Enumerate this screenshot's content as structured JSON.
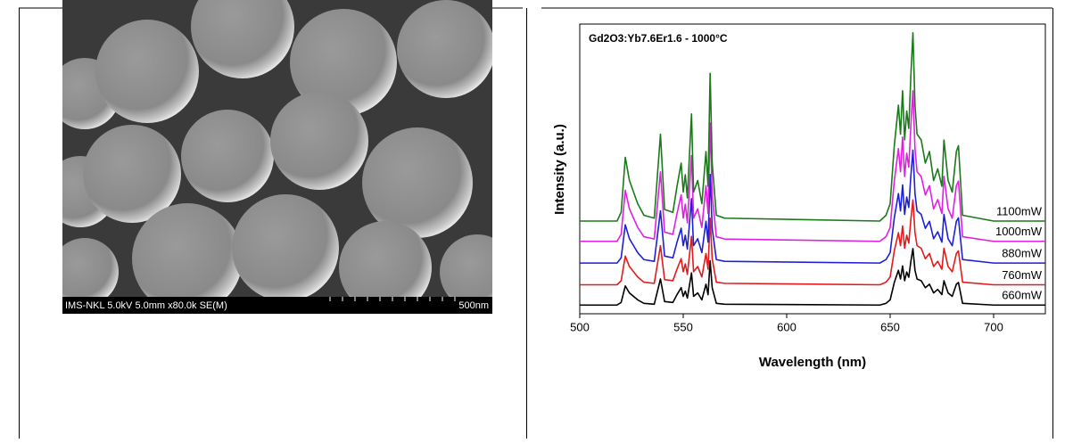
{
  "sem_image": {
    "info": "IMS-NKL 5.0kV 5.0mm x80.0k SE(M)",
    "scale": "500nm"
  },
  "chart_data": {
    "type": "line",
    "title": "Gd2O3:Yb7.6Er1.6 - 1000°C",
    "xlabel": "Wavelength (nm)",
    "ylabel": "Intensity (a.u.)",
    "xlim": [
      500,
      725
    ],
    "xticks": [
      500,
      550,
      600,
      650,
      700
    ],
    "ylim": [
      0,
      100
    ],
    "x": [
      500,
      518,
      520,
      522,
      524,
      526,
      528,
      531,
      536,
      539,
      541,
      545,
      547,
      549,
      550,
      551,
      552,
      554,
      555,
      557,
      559,
      561,
      562,
      563,
      564,
      566,
      570,
      645,
      648,
      650,
      652,
      654,
      655,
      656,
      657,
      658,
      659,
      660,
      661,
      662,
      663,
      665,
      667,
      669,
      671,
      673,
      675,
      676,
      678,
      680,
      682,
      683,
      685,
      700,
      725
    ],
    "series": [
      {
        "name": "660mW",
        "color": "#000000",
        "values": [
          3,
          3,
          3.9,
          9.6,
          7.2,
          6,
          4.8,
          3.6,
          3.3,
          12,
          4.2,
          3.9,
          6.6,
          9,
          6,
          7.8,
          5.4,
          14.1,
          6,
          7.2,
          4.8,
          10.2,
          6.6,
          18.3,
          9,
          3.6,
          3.3,
          3,
          3.6,
          4.8,
          10.8,
          15,
          12,
          16.5,
          11.4,
          14.4,
          12.6,
          18,
          22.5,
          15,
          12,
          11.4,
          9,
          10.2,
          7.2,
          8.4,
          6.6,
          11.4,
          7.2,
          6,
          10.2,
          10.8,
          3.6,
          3,
          3
        ]
      },
      {
        "name": "760mW",
        "color": "#e31a1c",
        "values": [
          10,
          10,
          11.4,
          19.9,
          16.3,
          14.5,
          12.7,
          10.9,
          10.5,
          23.5,
          11.8,
          11.4,
          15.4,
          19,
          14.5,
          17.2,
          13.6,
          26.7,
          14.5,
          16.3,
          12.7,
          20.8,
          15.4,
          33,
          19,
          10.9,
          10.5,
          10,
          10.9,
          12.7,
          21.7,
          28,
          23.5,
          30.3,
          22.6,
          27.1,
          24.4,
          32.5,
          39.3,
          28,
          23.5,
          22.6,
          19,
          20.8,
          16.3,
          18.1,
          15.4,
          22.6,
          16.3,
          14.5,
          20.8,
          21.7,
          10.9,
          10,
          10
        ]
      },
      {
        "name": "880mW",
        "color": "#1f1fd6",
        "values": [
          17.5,
          17.5,
          19.3,
          30.7,
          25.9,
          23.5,
          21.1,
          18.7,
          18.1,
          35.5,
          19.9,
          19.3,
          24.7,
          29.5,
          23.5,
          27.1,
          22.3,
          39.7,
          23.5,
          25.9,
          21.1,
          31.9,
          24.7,
          48.1,
          29.5,
          18.7,
          18.1,
          17.5,
          18.7,
          21.1,
          33.1,
          41.5,
          35.5,
          44.5,
          34.3,
          40.3,
          36.7,
          47.5,
          56.5,
          41.5,
          35.5,
          34.3,
          29.5,
          31.9,
          25.9,
          28.3,
          24.7,
          34.3,
          25.9,
          23.5,
          31.9,
          33.1,
          18.7,
          17.5,
          17.5
        ]
      },
      {
        "name": "1000mW",
        "color": "#e020e0",
        "values": [
          25,
          25,
          27.4,
          42.6,
          36.2,
          33,
          29.8,
          26.6,
          25.8,
          49,
          28.2,
          27.4,
          34.6,
          41,
          33,
          37.8,
          31.4,
          54.6,
          33,
          36.2,
          29.8,
          44.2,
          34.6,
          65.8,
          41,
          26.6,
          25.8,
          25,
          26.6,
          29.8,
          45.8,
          57,
          49,
          61,
          47.4,
          55.4,
          50.6,
          65,
          77,
          57,
          49,
          47.4,
          41,
          44.2,
          36.2,
          39.4,
          34.6,
          47.4,
          36.2,
          33,
          44.2,
          45.8,
          26.6,
          25,
          25
        ]
      },
      {
        "name": "1100mW",
        "color": "#1a7a1a",
        "values": [
          32,
          32,
          35,
          54,
          46,
          42,
          38,
          34,
          33,
          62,
          36,
          35,
          44,
          52,
          42,
          48,
          40,
          69,
          42,
          46,
          38,
          56,
          44,
          83,
          52,
          34,
          33,
          32,
          34,
          38,
          58,
          72,
          62,
          77,
          60,
          70,
          64,
          82,
          97,
          72,
          62,
          60,
          52,
          56,
          46,
          50,
          44,
          60,
          46,
          42,
          56,
          58,
          34,
          32,
          32
        ]
      }
    ]
  }
}
